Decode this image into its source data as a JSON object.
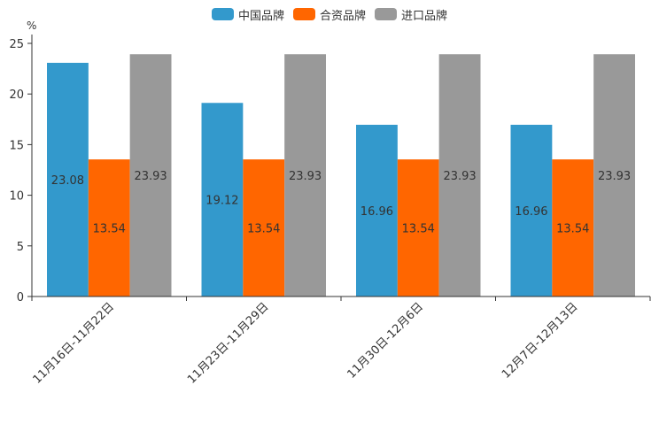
{
  "chart_data": {
    "type": "bar",
    "title": "",
    "unit_label": "%",
    "xlabel": "",
    "ylabel": "",
    "ylim": [
      0,
      25
    ],
    "yticks": [
      0,
      5,
      10,
      15,
      20,
      25
    ],
    "categories": [
      "11月16日-11月22日",
      "11月23日-11月29日",
      "11月30日-12月6日",
      "12月7日-12月13日"
    ],
    "series": [
      {
        "name": "中国品牌",
        "color": "#3399cc",
        "values": [
          23.08,
          19.12,
          16.96,
          16.96
        ]
      },
      {
        "name": "合资品牌",
        "color": "#ff6600",
        "values": [
          13.54,
          13.54,
          13.54,
          13.54
        ]
      },
      {
        "name": "进口品牌",
        "color": "#999999",
        "values": [
          23.93,
          23.93,
          23.93,
          23.93
        ]
      }
    ],
    "legend_position": "top-center",
    "grid": false
  }
}
